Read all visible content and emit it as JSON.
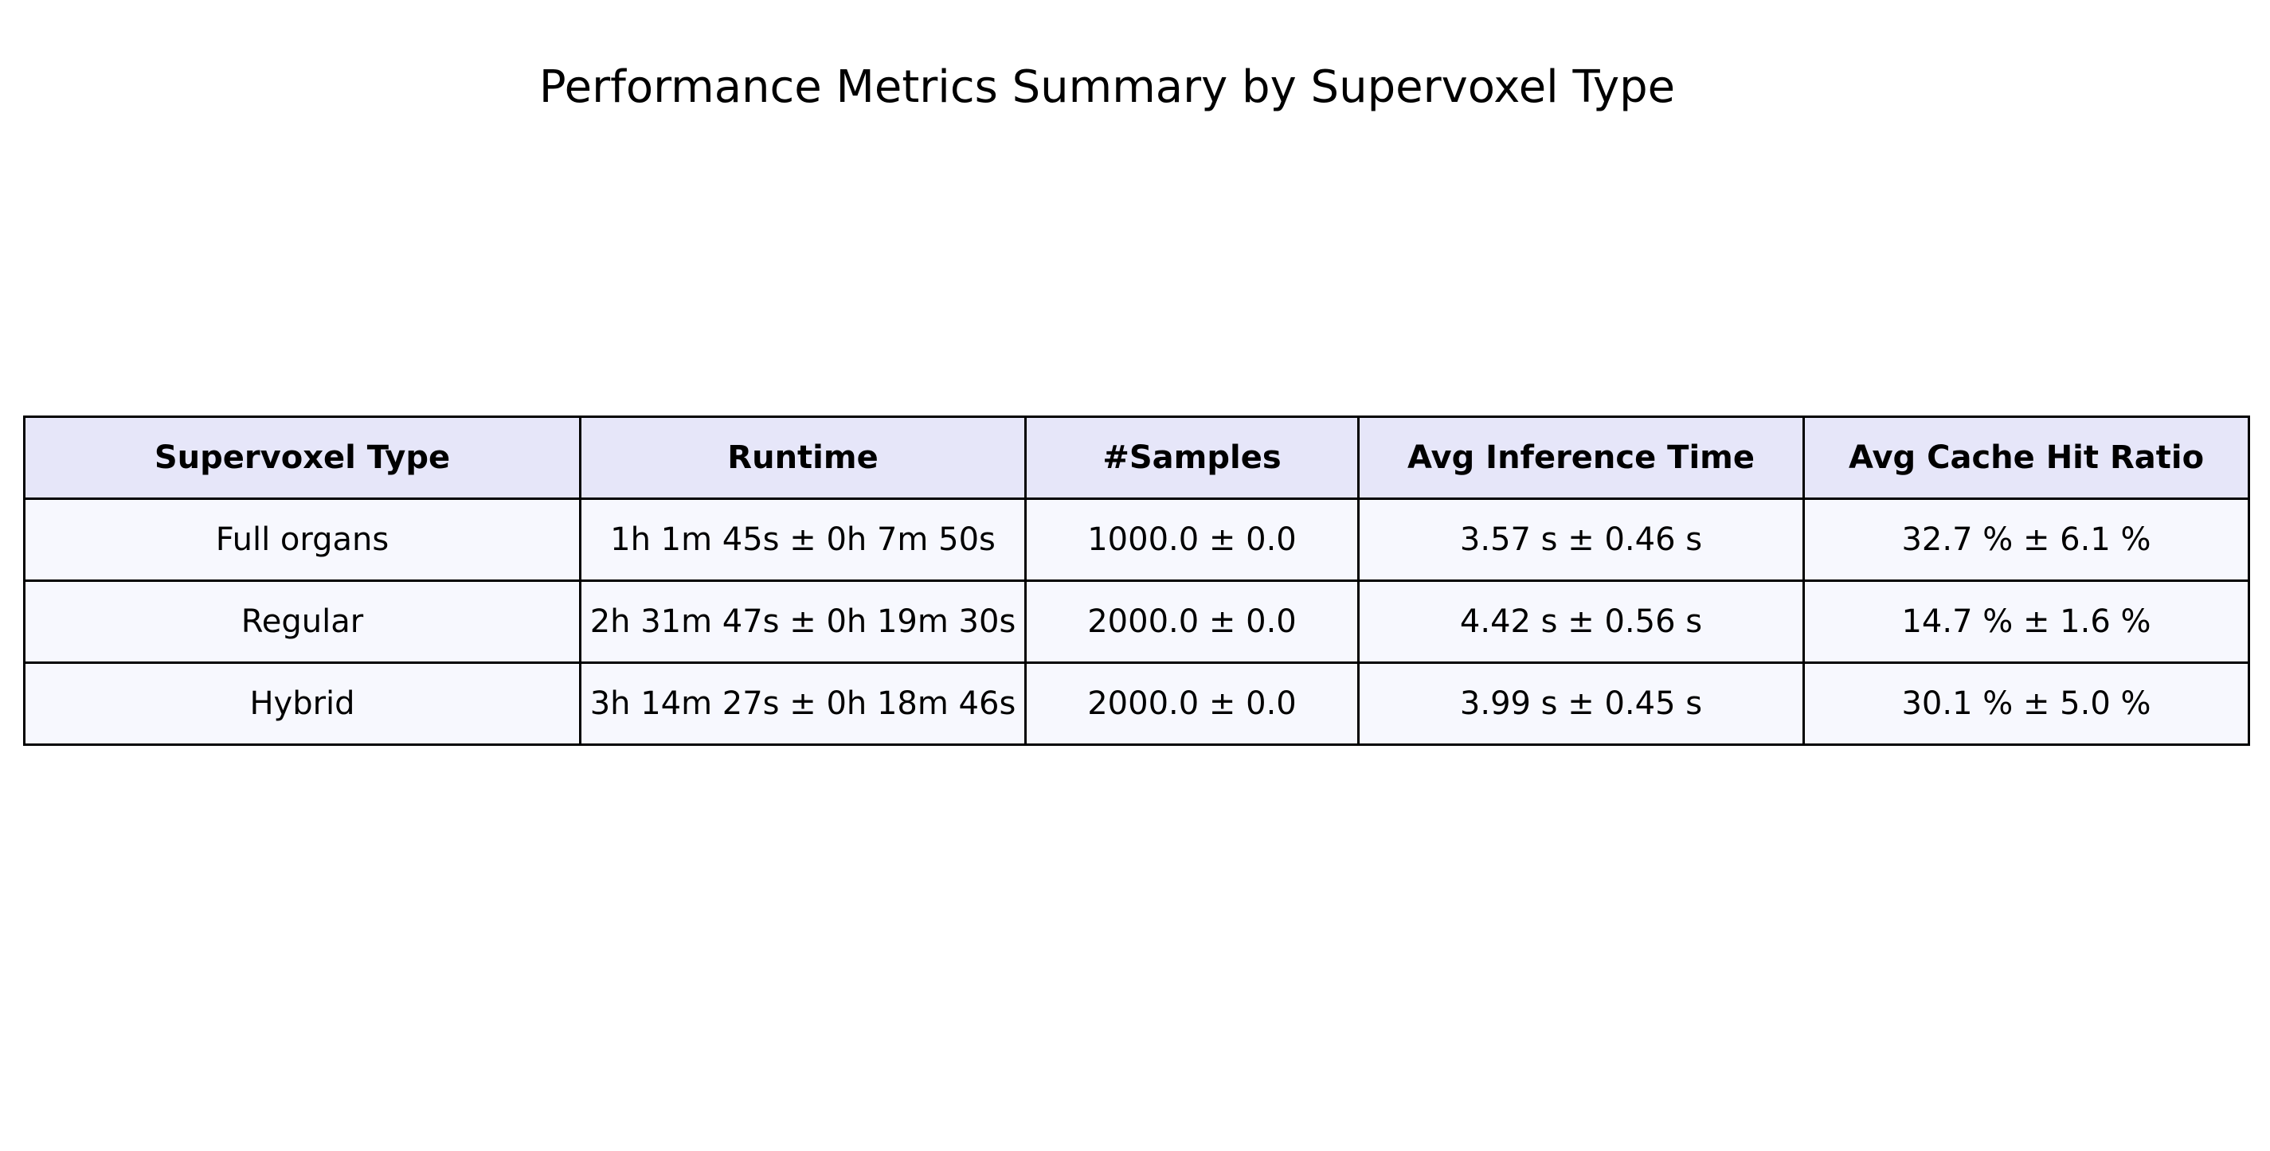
{
  "chart_data": {
    "type": "table",
    "title": "Performance Metrics Summary by Supervoxel Type",
    "columns": [
      "Supervoxel Type",
      "Runtime",
      "#Samples",
      "Avg Inference Time",
      "Avg Cache Hit Ratio"
    ],
    "rows": [
      [
        "Full organs",
        "1h 1m 45s ± 0h 7m 50s",
        "1000.0 ± 0.0",
        "3.57 s ± 0.46 s",
        "32.7 % ± 6.1 %"
      ],
      [
        "Regular",
        "2h 31m 47s ± 0h 19m 30s",
        "2000.0 ± 0.0",
        "4.42 s ± 0.56 s",
        "14.7 % ± 1.6 %"
      ],
      [
        "Hybrid",
        "3h 14m 27s ± 0h 18m 46s",
        "2000.0 ± 0.0",
        "3.99 s ± 0.45 s",
        "30.1 % ± 5.0 %"
      ]
    ],
    "header_color": "#e6e6f9",
    "row_color": "#f7f8fe",
    "border_color": "#000000"
  }
}
